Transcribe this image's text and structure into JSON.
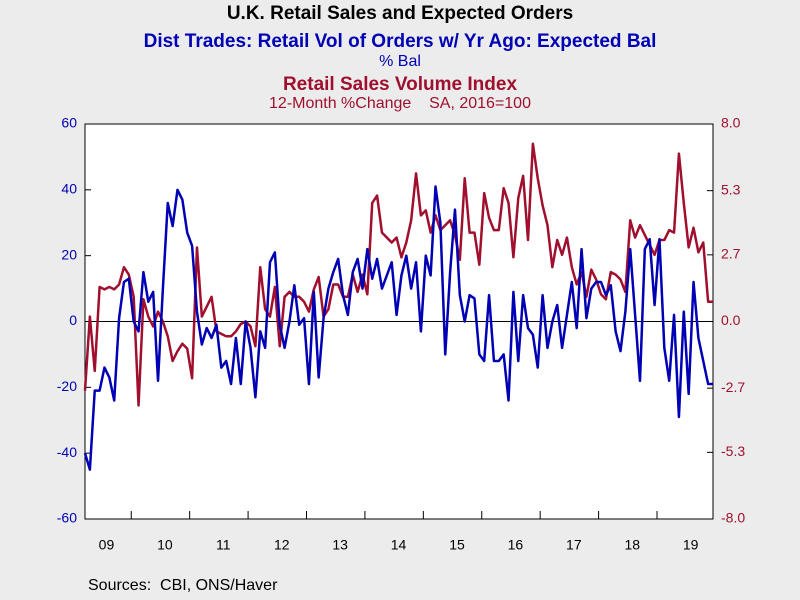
{
  "chart_data": {
    "type": "line",
    "title": "U.K. Retail Sales and Expected Orders",
    "source": "Sources:  CBI, ONS/Haver",
    "categories": [
      null,
      null,
      null,
      null,
      "09",
      null,
      null,
      null,
      null,
      null,
      null,
      null,
      null,
      null,
      null,
      null,
      "10",
      null,
      null,
      null,
      null,
      null,
      null,
      null,
      null,
      null,
      null,
      null,
      "11",
      null,
      null,
      null,
      null,
      null,
      null,
      null,
      null,
      null,
      null,
      null,
      "12",
      null,
      null,
      null,
      null,
      null,
      null,
      null,
      null,
      null,
      null,
      null,
      "13",
      null,
      null,
      null,
      null,
      null,
      null,
      null,
      null,
      null,
      null,
      null,
      "14",
      null,
      null,
      null,
      null,
      null,
      null,
      null,
      null,
      null,
      null,
      null,
      "15",
      null,
      null,
      null,
      null,
      null,
      null,
      null,
      null,
      null,
      null,
      null,
      "16",
      null,
      null,
      null,
      null,
      null,
      null,
      null,
      null,
      null,
      null,
      null,
      "17",
      null,
      null,
      null,
      null,
      null,
      null,
      null,
      null,
      null,
      null,
      null,
      "18",
      null,
      null,
      null,
      null,
      null,
      null,
      null,
      null,
      null,
      null,
      null,
      "19",
      null,
      null,
      null,
      null,
      null
    ],
    "ylim": [
      -60,
      60
    ],
    "yticks": [
      -60,
      -40,
      -20,
      0,
      20,
      40,
      60
    ],
    "y2lim": [
      -8,
      8
    ],
    "y2ticks": [
      {
        "value": -8,
        "label": "-8.0"
      },
      -5.3,
      -2.7,
      {
        "value": 0,
        "label": "0.0"
      },
      2.7,
      5.3,
      {
        "value": 8,
        "label": "8.0"
      }
    ],
    "series": [
      {
        "name": "Dist Trades: Retail Vol of Orders w/ Yr Ago: Expected Bal",
        "unit": "% Bal",
        "color": "#0000b4",
        "axis": "y",
        "values": [
          -40,
          -45,
          -21,
          -21,
          -14,
          -17,
          -24,
          1,
          12,
          13,
          0,
          -3,
          15,
          6,
          9,
          -18,
          10,
          36,
          29,
          40,
          37,
          27,
          23,
          3,
          -7,
          -2,
          -5,
          -1,
          -14,
          -12,
          -19,
          -5,
          -19,
          0,
          -8,
          -23,
          -3,
          -8,
          18,
          21,
          -1,
          -8,
          0,
          11,
          -1,
          1,
          -19,
          9,
          -17,
          1,
          10,
          15,
          19,
          8,
          2,
          15,
          19,
          10,
          22,
          13,
          19,
          10,
          14,
          18,
          2,
          14,
          20,
          10,
          18,
          -3,
          20,
          14,
          41,
          30,
          -10,
          15,
          34,
          8,
          0,
          8,
          7,
          -10,
          -12,
          8,
          -12,
          -12,
          -10,
          -24,
          9,
          -12,
          8,
          -2,
          -4,
          -14,
          8,
          -8,
          0,
          5,
          -8,
          2,
          12,
          -2,
          22,
          1,
          10,
          12,
          12,
          8,
          11,
          -3,
          -9,
          3,
          22,
          2,
          -18,
          22,
          25,
          5,
          25,
          -8,
          -18,
          2,
          -29,
          3,
          -22,
          12,
          -5,
          -12,
          -19,
          -19
        ]
      },
      {
        "name": "Retail Sales Volume Index",
        "unit": "12-Month %Change    SA, 2016=100",
        "color": "#a0102e",
        "axis": "y2",
        "values": [
          -2.8,
          0.2,
          -2.0,
          1.4,
          1.3,
          1.4,
          1.3,
          1.5,
          2.2,
          1.9,
          1.0,
          -3.4,
          0.9,
          0.2,
          -0.2,
          0.4,
          0.0,
          -0.6,
          -1.6,
          -1.2,
          -0.9,
          -1.1,
          -2.3,
          3.0,
          0.2,
          0.6,
          1.0,
          -0.4,
          -0.5,
          -0.6,
          -0.6,
          -0.4,
          -0.1,
          0.0,
          -0.2,
          -1.0,
          2.2,
          0.5,
          0.2,
          1.4,
          -1.0,
          1.0,
          1.2,
          1.0,
          1.0,
          0.8,
          0.4,
          1.3,
          1.8,
          0.2,
          0.5,
          1.5,
          1.5,
          1.0,
          1.0,
          1.9,
          1.2,
          1.9,
          1.1,
          4.8,
          5.1,
          3.6,
          3.4,
          3.2,
          3.4,
          2.6,
          3.2,
          4.1,
          6.0,
          4.3,
          4.5,
          3.6,
          4.3,
          3.7,
          3.9,
          4.1,
          3.5,
          2.5,
          5.8,
          3.6,
          3.6,
          2.3,
          5.2,
          4.2,
          3.7,
          3.7,
          5.4,
          4.8,
          2.6,
          5.0,
          5.9,
          3.3,
          7.2,
          5.8,
          4.7,
          3.9,
          2.2,
          3.3,
          2.7,
          3.4,
          2.2,
          1.5,
          2.0,
          1.0,
          2.1,
          1.7,
          1.1,
          0.9,
          2.0,
          1.9,
          1.7,
          1.2,
          4.1,
          3.4,
          3.9,
          3.5,
          3.1,
          2.7,
          3.3,
          3.3,
          3.7,
          3.6,
          6.8,
          4.8,
          3.0,
          3.8,
          2.8,
          3.2,
          0.8,
          0.8
        ]
      }
    ]
  }
}
